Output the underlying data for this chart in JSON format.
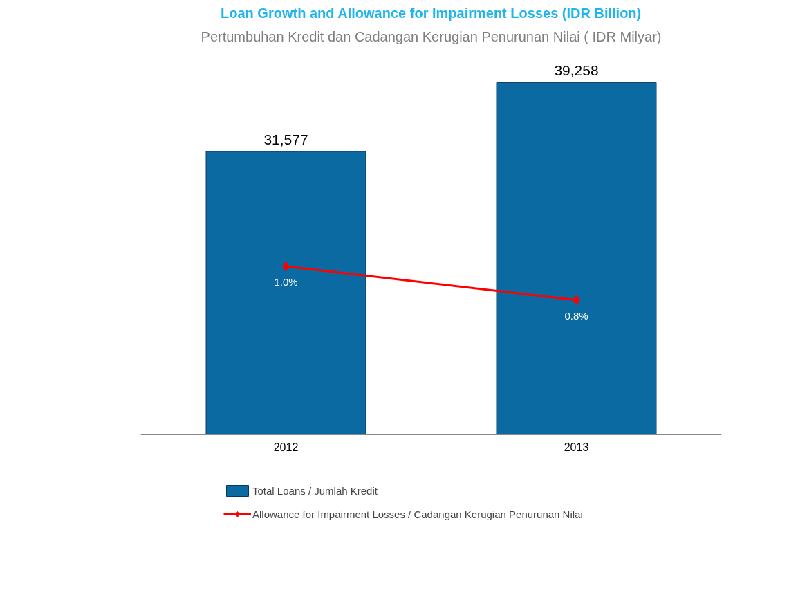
{
  "chart_data": {
    "type": "bar",
    "title": "Loan Growth and Allowance for Impairment Losses (IDR Billion)",
    "subtitle": "Pertumbuhan Kredit dan Cadangan Kerugian Penurunan Nilai ( IDR Milyar)",
    "categories": [
      "2012",
      "2013"
    ],
    "series": [
      {
        "name": "Total Loans / Jumlah Kredit",
        "color": "#0a6aa1",
        "values": [
          31577,
          39258
        ],
        "value_labels": [
          "31,577",
          "39,258"
        ]
      },
      {
        "name": "Allowance for Impairment Losses / Cadangan Kerugian Penurunan Nilai",
        "type": "line",
        "axis": "y2",
        "color": "#ff0000",
        "marker": "diamond",
        "values": [
          1.0,
          0.8
        ],
        "value_labels": [
          "1.0%",
          "0.8%"
        ]
      }
    ],
    "tick_labels": "x",
    "legend": "bottom left"
  }
}
